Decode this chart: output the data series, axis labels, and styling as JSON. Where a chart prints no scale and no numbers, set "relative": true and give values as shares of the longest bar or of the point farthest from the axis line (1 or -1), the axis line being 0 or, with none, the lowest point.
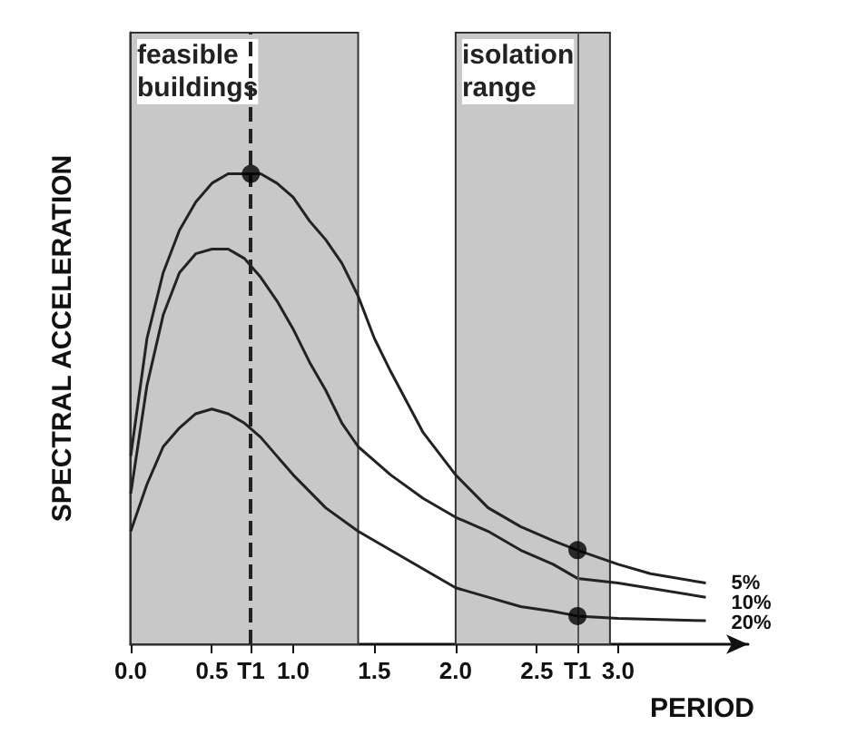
{
  "chart_data": {
    "type": "line",
    "xlabel": "PERIOD",
    "ylabel": "SPECTRAL ACCELERATION",
    "relative": true,
    "grid": false,
    "legend": false,
    "marker": "none",
    "xlim": [
      0,
      3.8
    ],
    "xticks": [
      {
        "value": 0,
        "label": "0.0"
      },
      {
        "value": 0.5,
        "label": "0.5"
      },
      {
        "value": 0.74,
        "label": "T1"
      },
      {
        "value": 1,
        "label": "1.0"
      },
      {
        "value": 1.5,
        "label": "1.5"
      },
      {
        "value": 2,
        "label": "2.0"
      },
      {
        "value": 2.5,
        "label": "2.5"
      },
      {
        "value": 2.75,
        "label": "T1"
      },
      {
        "value": 3,
        "label": "3.0"
      }
    ],
    "series": [
      {
        "name": "5%",
        "color": "#222222",
        "x": [
          0,
          0.1,
          0.2,
          0.3,
          0.4,
          0.5,
          0.6,
          0.7,
          0.8,
          0.9,
          1.0,
          1.1,
          1.2,
          1.3,
          1.4,
          1.5,
          1.6,
          1.8,
          2.0,
          2.2,
          2.4,
          2.6,
          2.75,
          3.0,
          3.2,
          3.54
        ],
        "values": [
          0.4,
          0.65,
          0.79,
          0.88,
          0.94,
          0.98,
          1.0,
          1.0,
          1.0,
          0.98,
          0.95,
          0.9,
          0.86,
          0.81,
          0.74,
          0.65,
          0.58,
          0.45,
          0.36,
          0.29,
          0.25,
          0.22,
          0.2,
          0.17,
          0.15,
          0.13
        ]
      },
      {
        "name": "10%",
        "color": "#222222",
        "x": [
          0,
          0.1,
          0.2,
          0.3,
          0.4,
          0.5,
          0.6,
          0.7,
          0.8,
          0.9,
          1.0,
          1.1,
          1.2,
          1.3,
          1.4,
          1.6,
          1.8,
          2.0,
          2.2,
          2.4,
          2.6,
          2.75,
          3.0,
          3.54
        ],
        "values": [
          0.32,
          0.55,
          0.7,
          0.79,
          0.83,
          0.84,
          0.84,
          0.82,
          0.78,
          0.73,
          0.67,
          0.6,
          0.54,
          0.47,
          0.42,
          0.36,
          0.31,
          0.27,
          0.24,
          0.2,
          0.17,
          0.14,
          0.13,
          0.1
        ]
      },
      {
        "name": "20%",
        "color": "#222222",
        "x": [
          0,
          0.1,
          0.2,
          0.3,
          0.4,
          0.5,
          0.6,
          0.7,
          0.8,
          0.9,
          1.0,
          1.2,
          1.4,
          1.6,
          1.8,
          2.0,
          2.2,
          2.4,
          2.6,
          2.75,
          3.0,
          3.54
        ],
        "values": [
          0.24,
          0.34,
          0.42,
          0.46,
          0.49,
          0.5,
          0.49,
          0.47,
          0.44,
          0.4,
          0.36,
          0.29,
          0.24,
          0.2,
          0.16,
          0.12,
          0.1,
          0.08,
          0.07,
          0.06,
          0.055,
          0.05
        ]
      },
      {
        "type": "scatter",
        "color": "#000000",
        "marker": "circle",
        "x": [
          0.74,
          2.75,
          2.75
        ],
        "values": [
          1.0,
          0.2,
          0.06
        ]
      }
    ],
    "ref_lines": [
      {
        "axis": "x",
        "value": 0.74,
        "line_style": "dashed",
        "color": "#222222"
      },
      {
        "axis": "x",
        "value": 2.75,
        "line_style": "solid",
        "color": "#555555"
      }
    ],
    "bands": [
      {
        "axis": "x",
        "from": 0,
        "to": 1.4,
        "label": "feasible buildings",
        "color": "#c8c8c8"
      },
      {
        "axis": "x",
        "from": 2.0,
        "to": 2.95,
        "label": "isolation range",
        "color": "#c8c8c8"
      }
    ]
  }
}
